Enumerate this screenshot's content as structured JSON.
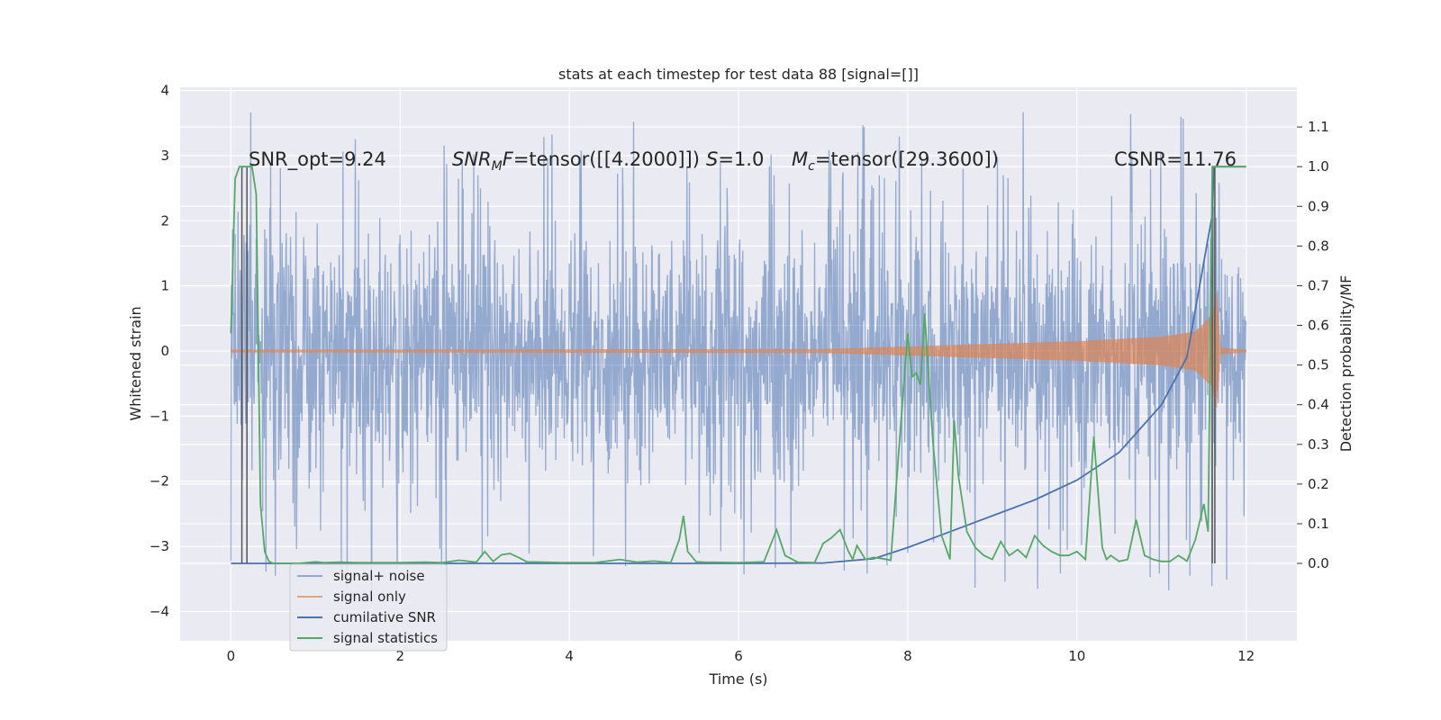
{
  "chart_data": {
    "type": "line",
    "title": "stats at each timestep for test data 88 [signal=[]]",
    "xlabel": "Time (s)",
    "ylabel": "Whitened strain",
    "y2label": "Detection probability/MF",
    "xlim": [
      -0.6,
      12.6
    ],
    "ylim": [
      -4.45,
      4.05
    ],
    "y2lim": [
      -0.195,
      1.2
    ],
    "x_ticks": [
      0,
      2,
      4,
      6,
      8,
      10,
      12
    ],
    "y_ticks": [
      -4,
      -3,
      -2,
      -1,
      0,
      1,
      2,
      3,
      4
    ],
    "y2_ticks": [
      0.0,
      0.1,
      0.2,
      0.3,
      0.4,
      0.5,
      0.6,
      0.7,
      0.8,
      0.9,
      1.0,
      1.1
    ],
    "x_tick_labels": [
      "0",
      "2",
      "4",
      "6",
      "8",
      "10",
      "12"
    ],
    "y_tick_labels": [
      "−4",
      "−3",
      "−2",
      "−1",
      "0",
      "1",
      "2",
      "3",
      "4"
    ],
    "y2_tick_labels": [
      "0.0",
      "0.1",
      "0.2",
      "0.3",
      "0.4",
      "0.5",
      "0.6",
      "0.7",
      "0.8",
      "0.9",
      "1.0",
      "1.1"
    ],
    "annotations": {
      "snr_opt": "SNR_opt=9.24",
      "snr_mf_sym": "SNR",
      "snr_mf_sub": "M",
      "snr_mf_rest": "F=tensor([[4.2000]])",
      "s_sym": "S",
      "s_rest": "=1.0",
      "mc_sym": "M",
      "mc_sub": "c",
      "mc_rest": "=tensor([29.3600])",
      "csnr": "CSNR=11.76"
    },
    "series": [
      {
        "name": "signal+ noise",
        "color": "#4c72b0",
        "axis": "left",
        "description": "whitened noisy strain, amplitude envelope ~±2.2 with spikes to ~±3.7"
      },
      {
        "name": "signal only",
        "color": "#dd8452",
        "axis": "left",
        "description": "chirp envelope",
        "envelope": {
          "x": [
            0,
            7,
            8,
            9,
            10,
            11,
            11.4,
            11.6,
            11.65,
            11.7,
            12
          ],
          "y": [
            0.02,
            0.03,
            0.07,
            0.11,
            0.15,
            0.22,
            0.3,
            0.55,
            0.9,
            0.05,
            0.02
          ]
        }
      },
      {
        "name": "cumilative SNR",
        "color": "#4c72b0",
        "axis": "right",
        "x": [
          0,
          6.0,
          7.0,
          7.6,
          8.0,
          8.5,
          9.0,
          9.5,
          10.0,
          10.5,
          11.0,
          11.3,
          11.6,
          11.62,
          12
        ],
        "y": [
          0.0,
          0.0,
          0.001,
          0.012,
          0.04,
          0.08,
          0.12,
          0.16,
          0.21,
          0.28,
          0.4,
          0.52,
          0.88,
          1.0,
          1.0
        ]
      },
      {
        "name": "signal statistics",
        "color": "#55a868",
        "axis": "right",
        "x": [
          0.0,
          0.05,
          0.1,
          0.15,
          0.2,
          0.25,
          0.3,
          0.35,
          0.4,
          0.45,
          0.5,
          0.6,
          0.8,
          1.0,
          1.1,
          1.3,
          1.5,
          1.8,
          2.0,
          2.3,
          2.5,
          2.7,
          2.9,
          3.0,
          3.1,
          3.2,
          3.3,
          3.4,
          3.5,
          3.7,
          3.9,
          4.3,
          4.6,
          4.8,
          5.0,
          5.2,
          5.3,
          5.35,
          5.4,
          5.5,
          5.6,
          6.0,
          6.3,
          6.45,
          6.55,
          6.7,
          6.9,
          7.0,
          7.1,
          7.2,
          7.3,
          7.35,
          7.4,
          7.5,
          7.6,
          7.7,
          7.8,
          7.9,
          8.0,
          8.05,
          8.1,
          8.15,
          8.2,
          8.25,
          8.3,
          8.4,
          8.5,
          8.55,
          8.6,
          8.65,
          8.7,
          8.8,
          8.9,
          9.0,
          9.1,
          9.2,
          9.3,
          9.4,
          9.5,
          9.6,
          9.7,
          9.8,
          9.9,
          10.0,
          10.1,
          10.2,
          10.3,
          10.35,
          10.4,
          10.5,
          10.6,
          10.7,
          10.8,
          10.9,
          11.0,
          11.1,
          11.2,
          11.3,
          11.4,
          11.5,
          11.55,
          11.6,
          11.65,
          11.7,
          12.0
        ],
        "y": [
          0.58,
          0.97,
          1.0,
          1.0,
          1.0,
          1.0,
          0.93,
          0.15,
          0.03,
          0.005,
          0.0,
          0.0,
          0.0,
          0.004,
          0.002,
          0.003,
          0.002,
          0.002,
          0.002,
          0.003,
          0.002,
          0.008,
          0.003,
          0.03,
          0.005,
          0.022,
          0.025,
          0.015,
          0.004,
          0.003,
          0.002,
          0.002,
          0.01,
          0.003,
          0.006,
          0.002,
          0.06,
          0.12,
          0.03,
          0.004,
          0.003,
          0.002,
          0.004,
          0.085,
          0.02,
          0.003,
          0.002,
          0.05,
          0.065,
          0.085,
          0.03,
          0.01,
          0.045,
          0.01,
          0.015,
          0.012,
          0.008,
          0.3,
          0.58,
          0.47,
          0.48,
          0.45,
          0.63,
          0.46,
          0.3,
          0.07,
          0.01,
          0.36,
          0.22,
          0.15,
          0.08,
          0.04,
          0.02,
          0.01,
          0.055,
          0.02,
          0.035,
          0.015,
          0.07,
          0.045,
          0.03,
          0.02,
          0.02,
          0.03,
          0.01,
          0.32,
          0.04,
          0.01,
          0.02,
          0.005,
          0.01,
          0.11,
          0.02,
          0.01,
          0.005,
          0.005,
          0.02,
          0.006,
          0.06,
          0.15,
          0.08,
          1.0,
          1.0,
          1.0,
          1.0
        ]
      }
    ],
    "vertical_markers": {
      "color": "#555555",
      "x": [
        0.13,
        0.19,
        11.6,
        11.63
      ]
    },
    "legend": {
      "placement": "lower-left",
      "entries": [
        "signal+ noise",
        "signal only",
        "cumilative SNR",
        "signal statistics"
      ]
    }
  }
}
